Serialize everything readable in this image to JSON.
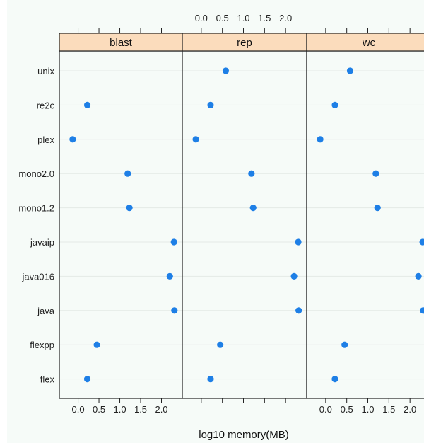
{
  "chart_data": {
    "type": "scatter",
    "subtype": "dotplot",
    "xlabel": "log10 memory(MB)",
    "ylabel": "",
    "title": "",
    "xlim": [
      -0.45,
      2.5
    ],
    "xticks": [
      0.0,
      0.5,
      1.0,
      1.5,
      2.0
    ],
    "xtick_labels": [
      "0.0",
      "0.5",
      "1.0",
      "1.5",
      "2.0"
    ],
    "categories": [
      "unix",
      "re2c",
      "plex",
      "mono2.0",
      "mono1.2",
      "javaip",
      "java016",
      "java",
      "flexpp",
      "flex"
    ],
    "panels": [
      {
        "name": "blast",
        "values": [
          null,
          0.22,
          -0.13,
          1.19,
          1.23,
          2.3,
          2.2,
          2.31,
          0.45,
          0.22
        ]
      },
      {
        "name": "rep",
        "values": [
          0.58,
          0.22,
          -0.13,
          1.19,
          1.23,
          2.3,
          2.2,
          2.31,
          0.45,
          0.22
        ]
      },
      {
        "name": "wc",
        "values": [
          0.58,
          0.22,
          -0.13,
          1.19,
          1.23,
          2.3,
          2.2,
          2.31,
          0.45,
          0.22
        ]
      }
    ],
    "grid": true,
    "point_color": "#1e7fe6",
    "strip_color": "#fbdcbc",
    "panel_background": "#f6fbf8",
    "grid_color": "#e4eae6"
  }
}
